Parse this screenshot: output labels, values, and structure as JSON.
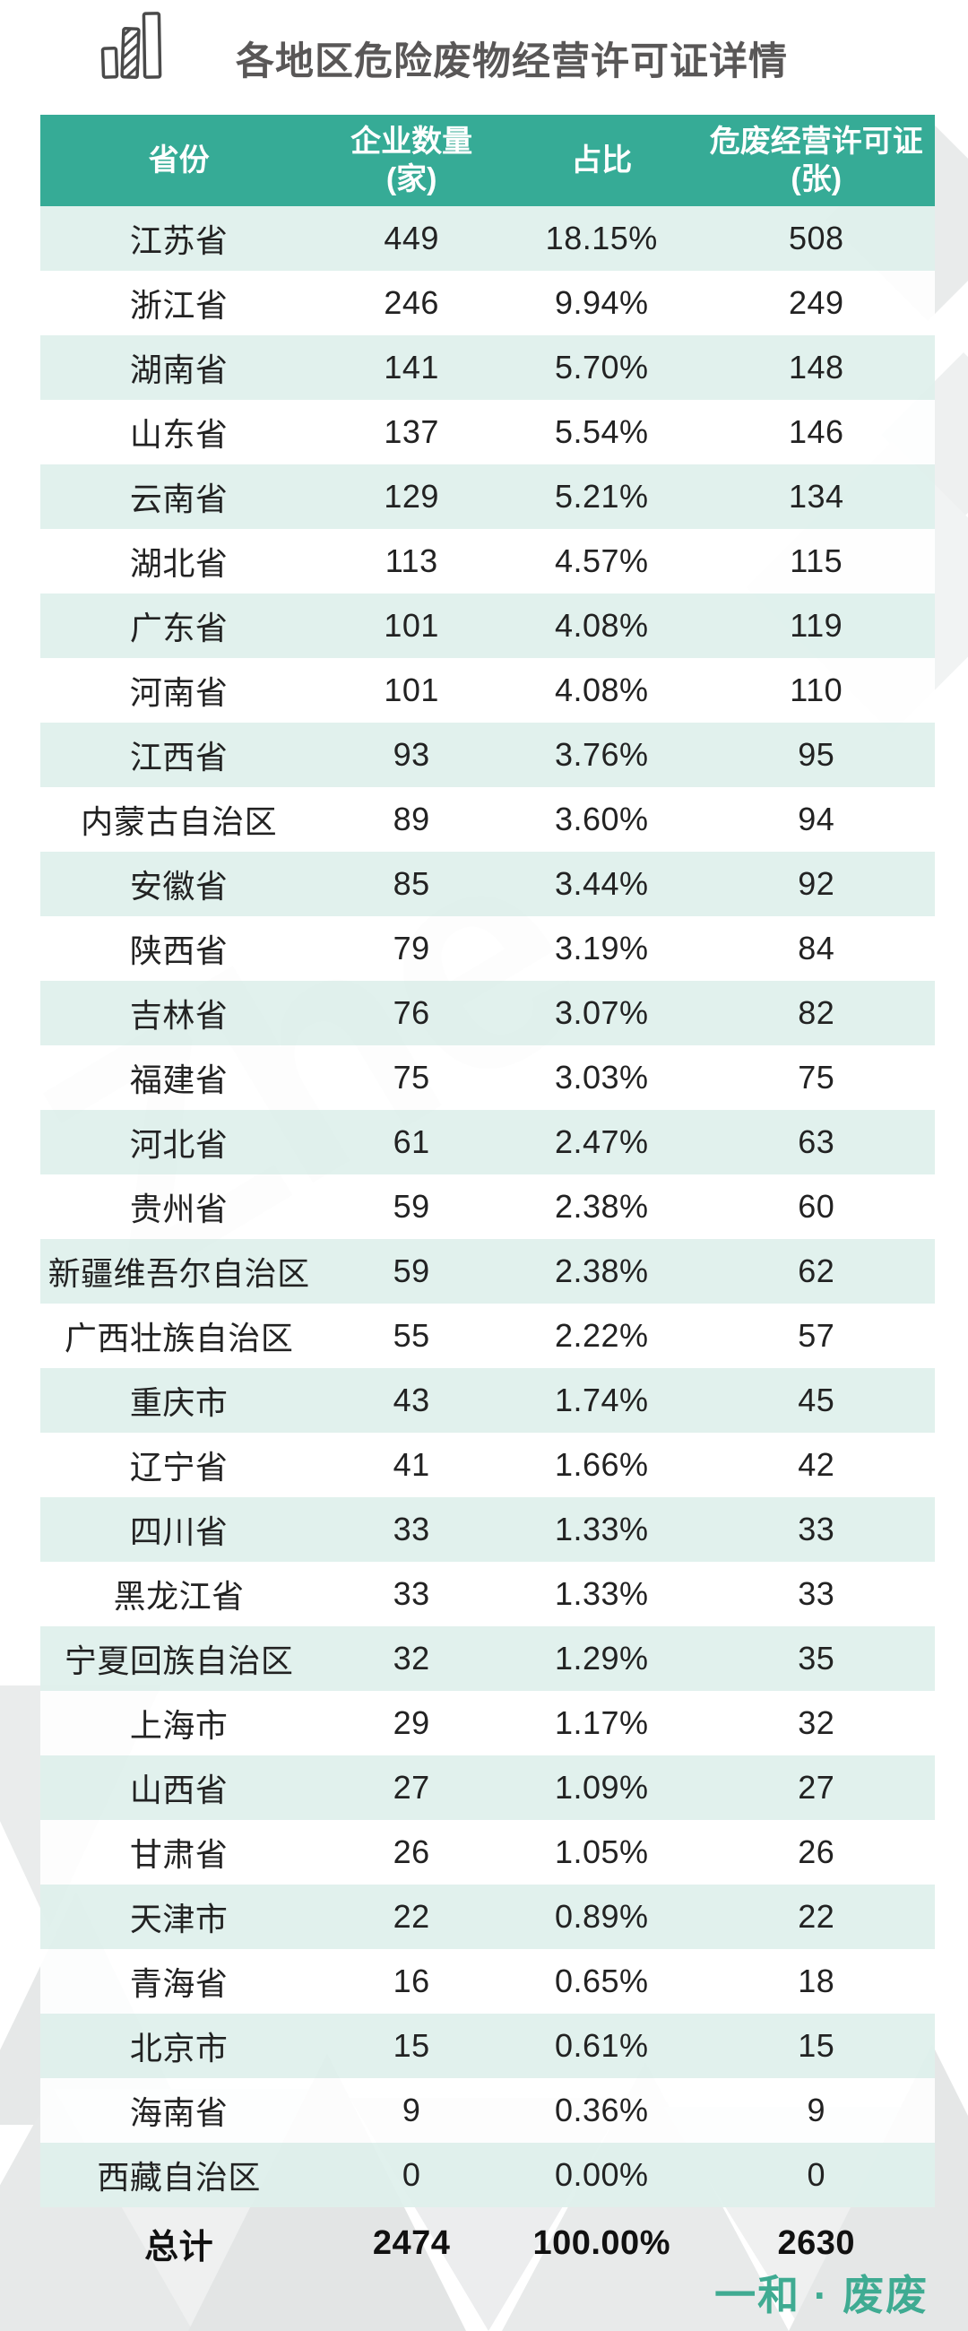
{
  "chart_data": {
    "type": "table",
    "title": "各地区危险废物经营许可证详情",
    "columns": [
      {
        "label": "省份",
        "sub": ""
      },
      {
        "label": "企业数量",
        "sub": "(家)"
      },
      {
        "label": "占比",
        "sub": ""
      },
      {
        "label": "危废经营许可证",
        "sub": "(张)"
      }
    ],
    "rows": [
      [
        "江苏省",
        "449",
        "18.15%",
        "508"
      ],
      [
        "浙江省",
        "246",
        "9.94%",
        "249"
      ],
      [
        "湖南省",
        "141",
        "5.70%",
        "148"
      ],
      [
        "山东省",
        "137",
        "5.54%",
        "146"
      ],
      [
        "云南省",
        "129",
        "5.21%",
        "134"
      ],
      [
        "湖北省",
        "113",
        "4.57%",
        "115"
      ],
      [
        "广东省",
        "101",
        "4.08%",
        "119"
      ],
      [
        "河南省",
        "101",
        "4.08%",
        "110"
      ],
      [
        "江西省",
        "93",
        "3.76%",
        "95"
      ],
      [
        "内蒙古自治区",
        "89",
        "3.60%",
        "94"
      ],
      [
        "安徽省",
        "85",
        "3.44%",
        "92"
      ],
      [
        "陕西省",
        "79",
        "3.19%",
        "84"
      ],
      [
        "吉林省",
        "76",
        "3.07%",
        "82"
      ],
      [
        "福建省",
        "75",
        "3.03%",
        "75"
      ],
      [
        "河北省",
        "61",
        "2.47%",
        "63"
      ],
      [
        "贵州省",
        "59",
        "2.38%",
        "60"
      ],
      [
        "新疆维吾尔自治区",
        "59",
        "2.38%",
        "62"
      ],
      [
        "广西壮族自治区",
        "55",
        "2.22%",
        "57"
      ],
      [
        "重庆市",
        "43",
        "1.74%",
        "45"
      ],
      [
        "辽宁省",
        "41",
        "1.66%",
        "42"
      ],
      [
        "四川省",
        "33",
        "1.33%",
        "33"
      ],
      [
        "黑龙江省",
        "33",
        "1.33%",
        "33"
      ],
      [
        "宁夏回族自治区",
        "32",
        "1.29%",
        "35"
      ],
      [
        "上海市",
        "29",
        "1.17%",
        "32"
      ],
      [
        "山西省",
        "27",
        "1.09%",
        "27"
      ],
      [
        "甘肃省",
        "26",
        "1.05%",
        "26"
      ],
      [
        "天津市",
        "22",
        "0.89%",
        "22"
      ],
      [
        "青海省",
        "16",
        "0.65%",
        "18"
      ],
      [
        "北京市",
        "15",
        "0.61%",
        "15"
      ],
      [
        "海南省",
        "9",
        "0.36%",
        "9"
      ],
      [
        "西藏自治区",
        "0",
        "0.00%",
        "0"
      ]
    ],
    "total": [
      "总计",
      "2474",
      "100.00%",
      "2630"
    ]
  },
  "icons": {
    "title": "bar-chart-icon"
  },
  "watermark": {
    "text": "Zhe"
  },
  "footer": {
    "brand": "一和 · 废废"
  },
  "colors": {
    "header_bg": "#36ab96",
    "row_alt": "#dff0ec",
    "title_text": "#595757",
    "cell_text": "#222222",
    "brand": "#3fab92",
    "wm_gray": "#e4e7e7"
  }
}
